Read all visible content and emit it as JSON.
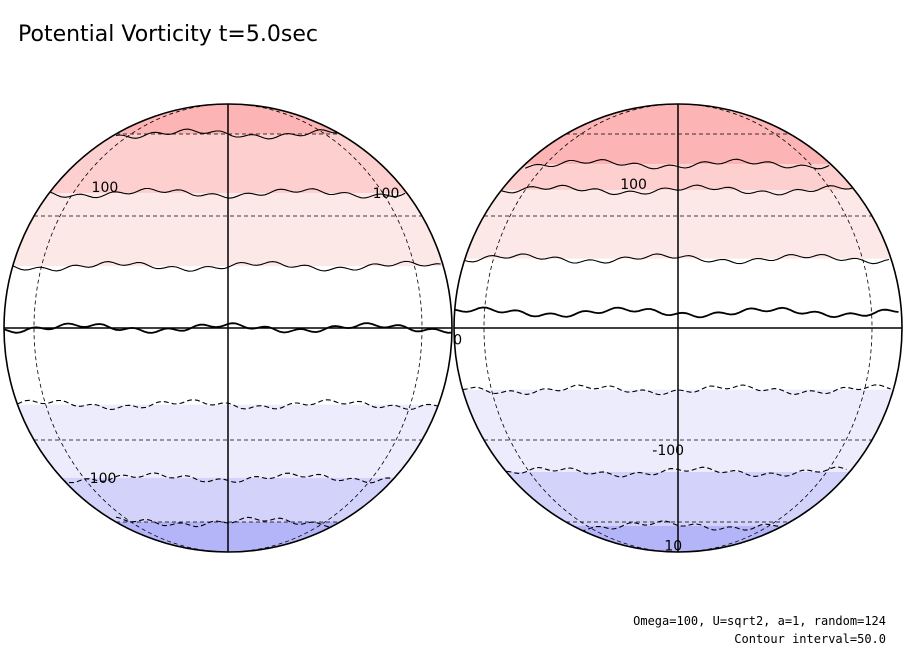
{
  "title": "Potential Vorticity t=5.0sec",
  "footer": {
    "params": "Omega=100, U=sqrt2, a=1, random=124",
    "contour_interval": "Contour interval=50.0"
  },
  "chart_data": {
    "type": "contour",
    "projection": "orthographic hemispheres (two views)",
    "field": "potential vorticity",
    "contour_interval": 50.0,
    "levels": [
      -150,
      -100,
      -50,
      0,
      50,
      100,
      150
    ],
    "level_colors": {
      "-150": "#b4b4f8",
      "-100": "#d2d2fa",
      "-50": "#ececfc",
      "0": "#ffffff",
      "50": "#fde8e8",
      "100": "#fdcfcf",
      "150": "#fcb4b4"
    },
    "negative_contours_dashed": true,
    "globes": [
      {
        "name": "left-hemisphere",
        "band_boundaries_lat": [
          {
            "value": 150,
            "lat": 60
          },
          {
            "value": 100,
            "lat": 37
          },
          {
            "value": 50,
            "lat": 16
          },
          {
            "value": 0,
            "lat": 0
          },
          {
            "value": -50,
            "lat": -20
          },
          {
            "value": -100,
            "lat": -42
          },
          {
            "value": -150,
            "lat": -60
          }
        ],
        "labels": [
          {
            "text": "100",
            "lat": 39,
            "lon": -45
          },
          {
            "text": "100",
            "lat": 37,
            "lon": 62
          },
          {
            "text": "-100",
            "lat": -42,
            "lon": -50
          }
        ]
      },
      {
        "name": "right-hemisphere",
        "band_boundaries_lat": [
          {
            "value": 150,
            "lat": 47
          },
          {
            "value": 100,
            "lat": 38
          },
          {
            "value": 50,
            "lat": 18
          },
          {
            "value": 0,
            "lat": 4
          },
          {
            "value": -50,
            "lat": -16
          },
          {
            "value": -100,
            "lat": -40
          },
          {
            "value": -150,
            "lat": -62
          }
        ],
        "labels": [
          {
            "text": "100",
            "lat": 40,
            "lon": -15
          },
          {
            "text": "0",
            "lat": -3,
            "lon": -80
          },
          {
            "text": "-100",
            "lat": -33,
            "lon": -3
          },
          {
            "text": "10",
            "lat": -76,
            "lon": -5
          }
        ]
      }
    ],
    "graticule_lat": [
      -60,
      -30,
      30,
      60
    ],
    "graticule_lon": [
      -60,
      60
    ]
  }
}
